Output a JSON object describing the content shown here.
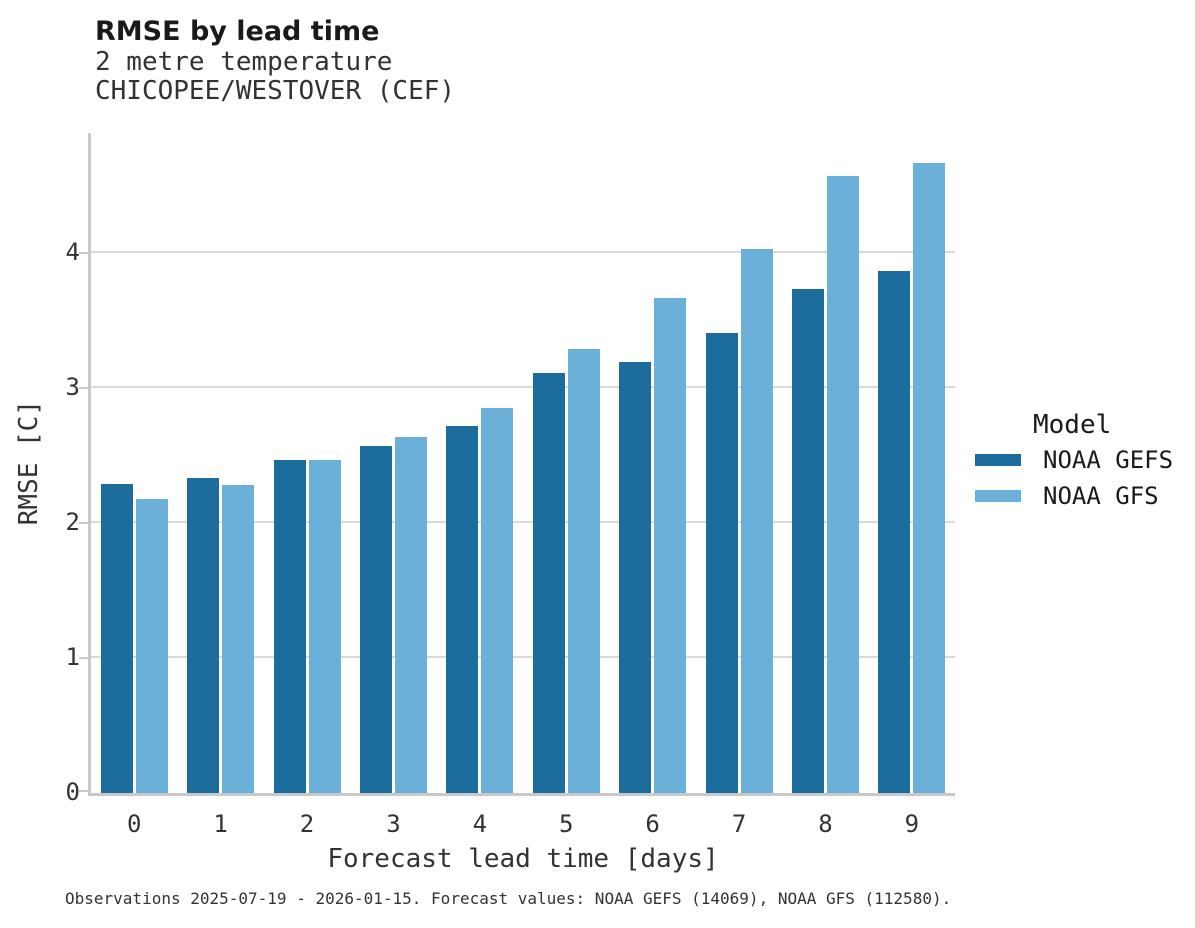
{
  "title": "RMSE by lead time",
  "subtitle_line1": "2 metre temperature",
  "subtitle_line2": "CHICOPEE/WESTOVER (CEF)",
  "footer": "Observations 2025-07-19 - 2026-01-15. Forecast values: NOAA GEFS (14069), NOAA GFS (112580).",
  "legend": {
    "title": "Model",
    "entries": [
      {
        "label": "NOAA GEFS",
        "color": "#1c6d9d"
      },
      {
        "label": "NOAA GFS",
        "color": "#6ab0d8"
      }
    ]
  },
  "colors": {
    "series_dark": "#1c6d9d",
    "series_light": "#6ab0d8",
    "axis": "#c9c9c9",
    "gridline": "#d9d9d9",
    "text": "#333333",
    "title_text": "#1a1a1a",
    "background": "#ffffff"
  },
  "chart_data": {
    "type": "bar",
    "title": "RMSE by lead time",
    "subtitle": [
      "2 metre temperature",
      "CHICOPEE/WESTOVER (CEF)"
    ],
    "categories": [
      "0",
      "1",
      "2",
      "3",
      "4",
      "5",
      "6",
      "7",
      "8",
      "9"
    ],
    "series": [
      {
        "name": "NOAA GEFS",
        "color": "#1c6d9d",
        "values": [
          2.29,
          2.33,
          2.47,
          2.57,
          2.72,
          3.11,
          3.19,
          3.41,
          3.73,
          3.87
        ]
      },
      {
        "name": "NOAA GFS",
        "color": "#6ab0d8",
        "values": [
          2.18,
          2.28,
          2.47,
          2.64,
          2.85,
          3.29,
          3.67,
          4.03,
          4.57,
          4.67
        ]
      }
    ],
    "xlabel": "Forecast lead time [days]",
    "ylabel": "RMSE [C]",
    "ylim": [
      0,
      4.87
    ],
    "yticks": [
      0,
      1,
      2,
      3,
      4
    ],
    "grid": "horizontal",
    "legend_title": "Model",
    "legend_position": "right"
  }
}
